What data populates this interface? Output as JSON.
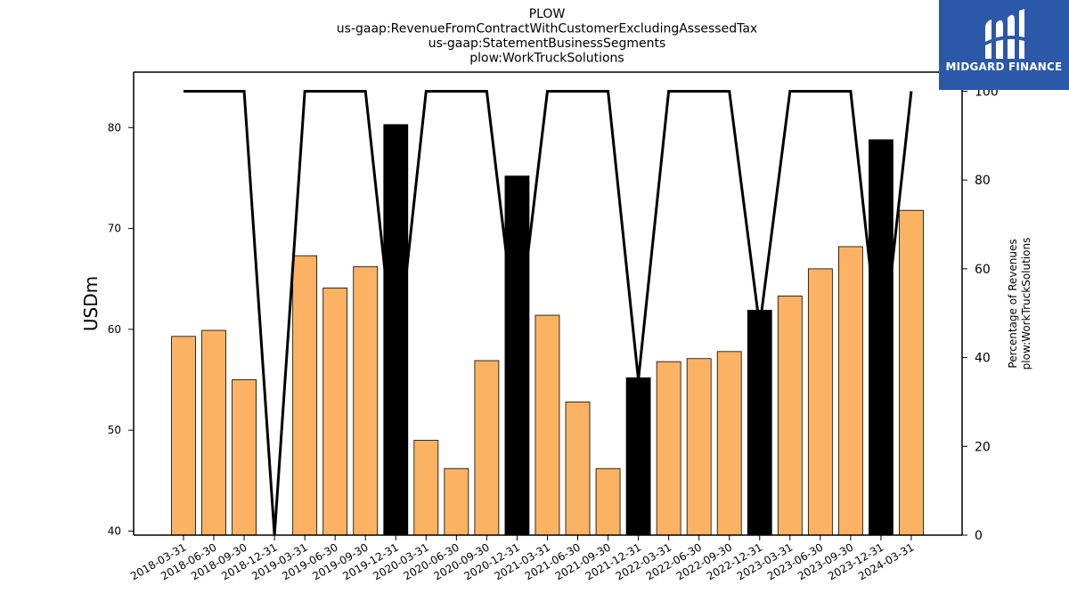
{
  "chart_data": {
    "type": "bar",
    "title_lines": [
      "PLOW",
      "us-gaap:RevenueFromContractWithCustomerExcludingAssessedTax",
      "us-gaap:StatementBusinessSegments",
      "plow:WorkTruckSolutions"
    ],
    "ylabel": "USDm",
    "ylabel_right": [
      "Percentage of Revenues",
      "plow:WorkTruckSolutions"
    ],
    "ylim": [
      39.6,
      85.5
    ],
    "yticks": [
      40,
      50,
      60,
      70,
      80
    ],
    "y2lim": [
      0,
      104.3
    ],
    "y2ticks": [
      0,
      20,
      40,
      60,
      80,
      100
    ],
    "categories": [
      "2018-03-31",
      "2018-06-30",
      "2018-09-30",
      "2018-12-31",
      "2019-03-31",
      "2019-06-30",
      "2019-09-30",
      "2019-12-31",
      "2020-03-31",
      "2020-06-30",
      "2020-09-30",
      "2020-12-31",
      "2021-03-31",
      "2021-06-30",
      "2021-09-30",
      "2021-12-31",
      "2022-03-31",
      "2022-06-30",
      "2022-09-30",
      "2022-12-31",
      "2023-03-31",
      "2023-06-30",
      "2023-09-30",
      "2023-12-31",
      "2024-03-31"
    ],
    "values": [
      59.3,
      59.9,
      55.0,
      null,
      67.3,
      64.1,
      66.2,
      80.3,
      49.0,
      46.2,
      56.9,
      75.2,
      61.4,
      52.8,
      46.2,
      55.2,
      56.8,
      57.1,
      57.8,
      61.9,
      63.3,
      66.0,
      68.2,
      78.8,
      71.8
    ],
    "bar_type": [
      "q",
      "q",
      "q",
      "q",
      "q",
      "q",
      "q",
      "fy",
      "q",
      "q",
      "q",
      "fy",
      "q",
      "q",
      "q",
      "fy",
      "q",
      "q",
      "q",
      "fy",
      "q",
      "q",
      "q",
      "fy",
      "q"
    ],
    "percentage_series": {
      "values": [
        100,
        100,
        100,
        0,
        100,
        100,
        100,
        37,
        100,
        100,
        100,
        43,
        100,
        100,
        100,
        35,
        100,
        100,
        100,
        47,
        100,
        100,
        100,
        38,
        100
      ]
    },
    "colors": {
      "quarter_bar": "#fbb262",
      "annual_bar": "#000000",
      "line": "#000000"
    },
    "grid": false
  },
  "logo": {
    "name": "midgard-logo-icon",
    "text": "MIDGARD FINANCE"
  }
}
